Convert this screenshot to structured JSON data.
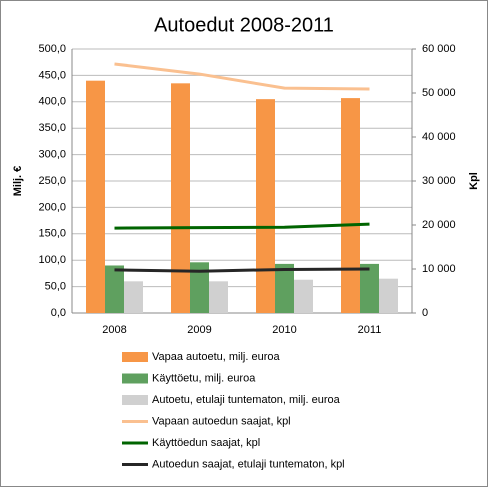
{
  "chart_data": {
    "type": "bar",
    "title": "Autoedut 2008-2011",
    "ylabel": "Milj. €",
    "y2label": "Kpl",
    "categories": [
      "2008",
      "2009",
      "2010",
      "2011"
    ],
    "ylim": [
      0,
      500
    ],
    "yticks": [
      {
        "value": 0,
        "label": "0,0"
      },
      {
        "value": 50,
        "label": "50,0"
      },
      {
        "value": 100,
        "label": "100,0"
      },
      {
        "value": 150,
        "label": "150,0"
      },
      {
        "value": 200,
        "label": "200,0"
      },
      {
        "value": 250,
        "label": "250,0"
      },
      {
        "value": 300,
        "label": "300,0"
      },
      {
        "value": 350,
        "label": "350,0"
      },
      {
        "value": 400,
        "label": "400,0"
      },
      {
        "value": 450,
        "label": "450,0"
      },
      {
        "value": 500,
        "label": "500,0"
      }
    ],
    "y2lim": [
      0,
      60000
    ],
    "y2ticks": [
      0,
      {
        "value": 10000,
        "label": "10 000"
      },
      {
        "value": 20000,
        "label": "20 000"
      },
      {
        "value": 30000,
        "label": "30 000"
      },
      {
        "value": 40000,
        "label": "40 000"
      },
      {
        "value": 50000,
        "label": "50 000"
      },
      {
        "value": 60000,
        "label": "60 000"
      }
    ],
    "grid": true,
    "series": [
      {
        "name": "Vapaa autoetu, milj. euroa",
        "color": "#f79646",
        "type": "bar",
        "values": [
          440,
          435,
          405,
          407
        ]
      },
      {
        "name": "Käyttöetu, milj. euroa",
        "color": "#5fa05f",
        "type": "bar",
        "values": [
          90,
          96,
          93,
          93
        ]
      },
      {
        "name": "Autoetu, etulaji tuntematon,  milj. euroa",
        "color": "#d0d0d0",
        "type": "bar",
        "values": [
          60,
          60,
          63,
          65
        ]
      },
      {
        "name": "Vapaan autoedun saajat,  kpl",
        "color": "#fac090",
        "type": "line",
        "axis": "y2",
        "values": [
          56600,
          54300,
          51100,
          50900
        ]
      },
      {
        "name": "Käyttöedun saajat,  kpl",
        "color": "#006400",
        "type": "line",
        "axis": "y2",
        "values": [
          19300,
          19400,
          19500,
          20200
        ]
      },
      {
        "name": "Autoedun saajat, etulaji tuntematon,  kpl",
        "color": "#262626",
        "type": "line",
        "axis": "y2",
        "values": [
          9800,
          9500,
          9900,
          10000
        ]
      }
    ]
  }
}
